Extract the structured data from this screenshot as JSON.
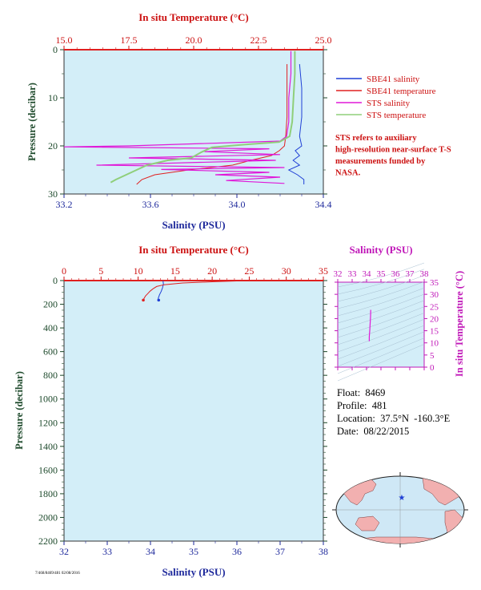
{
  "colors": {
    "salinity": "#1f3fd6",
    "temperature": "#e02020",
    "sts_salinity": "#e018d8",
    "sts_temperature": "#8fcf7a",
    "plot_bg": "#d3eef8",
    "map_grid": "#a7bfd1",
    "axis_red": "#cc1111",
    "axis_blue": "#1f2a9c",
    "axis_magenta": "#c018b8",
    "axis_green": "#1e4a2c"
  },
  "chart_data": [
    {
      "type": "line",
      "title": "",
      "top_axis_label": "In situ Temperature (°C)",
      "top_ticks": [
        "15.0",
        "17.5",
        "20.0",
        "22.5",
        "25.0"
      ],
      "top_range": [
        15.0,
        25.0
      ],
      "xlabel": "Salinity (PSU)",
      "x_ticks": [
        "33.2",
        "33.6",
        "34.0",
        "34.4"
      ],
      "xlim": [
        33.2,
        34.4
      ],
      "ylabel": "Pressure (decibar)",
      "y_ticks": [
        "0",
        "10",
        "20",
        "30"
      ],
      "ylim": [
        0,
        30
      ],
      "legend_position": "right",
      "series": [
        {
          "name": "SBE41 salinity",
          "axis": "salinity",
          "points": [
            [
              34.29,
              3
            ],
            [
              34.3,
              8
            ],
            [
              34.3,
              14
            ],
            [
              34.29,
              18
            ],
            [
              34.3,
              20
            ],
            [
              34.27,
              21
            ],
            [
              34.29,
              22
            ],
            [
              34.26,
              23
            ],
            [
              34.29,
              24
            ],
            [
              34.24,
              25
            ],
            [
              34.28,
              26
            ],
            [
              34.31,
              27
            ],
            [
              34.31,
              28
            ]
          ]
        },
        {
          "name": "SBE41 temperature",
          "axis": "temperature",
          "points": [
            [
              23.6,
              3
            ],
            [
              23.6,
              8
            ],
            [
              23.6,
              14
            ],
            [
              23.55,
              18
            ],
            [
              23.5,
              20
            ],
            [
              23.3,
              21
            ],
            [
              23.0,
              22
            ],
            [
              22.2,
              23
            ],
            [
              21.5,
              24
            ],
            [
              19.8,
              25
            ],
            [
              18.5,
              26
            ],
            [
              18.0,
              27
            ],
            [
              17.8,
              28
            ]
          ]
        },
        {
          "name": "STS salinity",
          "axis": "salinity",
          "points": [
            [
              34.25,
              0.3
            ],
            [
              34.25,
              5
            ],
            [
              34.24,
              10
            ],
            [
              34.24,
              15
            ],
            [
              34.23,
              18
            ],
            [
              34.2,
              19
            ],
            [
              33.5,
              20
            ],
            [
              33.2,
              20.2
            ],
            [
              34.15,
              20.6
            ],
            [
              33.85,
              21.2
            ],
            [
              34.2,
              21.8
            ],
            [
              33.5,
              22.5
            ],
            [
              34.18,
              23.0
            ],
            [
              33.35,
              24.0
            ],
            [
              34.22,
              24.5
            ],
            [
              33.65,
              24.9
            ],
            [
              34.15,
              25.5
            ],
            [
              33.9,
              26.0
            ],
            [
              34.2,
              26.5
            ],
            [
              33.95,
              27.2
            ],
            [
              34.22,
              27.8
            ]
          ]
        },
        {
          "name": "STS temperature",
          "axis": "temperature",
          "points": [
            [
              23.9,
              0.3
            ],
            [
              23.9,
              5
            ],
            [
              23.85,
              10
            ],
            [
              23.8,
              15
            ],
            [
              23.7,
              18
            ],
            [
              23.3,
              19.2
            ],
            [
              22.0,
              19.7
            ],
            [
              20.7,
              20.3
            ],
            [
              20.3,
              21.3
            ],
            [
              19.9,
              22.5
            ],
            [
              19.0,
              23.0
            ],
            [
              18.2,
              24.0
            ],
            [
              17.6,
              25.5
            ],
            [
              17.0,
              27.0
            ],
            [
              16.8,
              27.6
            ]
          ]
        }
      ],
      "note": "STS refers to auxiliary high-resolution near-surface T-S measurements funded by NASA."
    },
    {
      "type": "line",
      "title": "",
      "top_axis_label": "In situ Temperature (°C)",
      "top_ticks": [
        "0",
        "5",
        "10",
        "15",
        "20",
        "25",
        "30",
        "35"
      ],
      "top_range": [
        0,
        35
      ],
      "xlabel": "Salinity (PSU)",
      "x_ticks": [
        "32",
        "33",
        "34",
        "35",
        "36",
        "37",
        "38"
      ],
      "xlim": [
        32,
        38
      ],
      "ylabel": "Pressure (decibar)",
      "y_ticks": [
        "0",
        "200",
        "400",
        "600",
        "800",
        "1000",
        "1200",
        "1400",
        "1600",
        "1800",
        "2000",
        "2200"
      ],
      "ylim": [
        0,
        2200
      ],
      "series": [
        {
          "name": "Salinity",
          "axis": "salinity",
          "points": [
            [
              34.29,
              3
            ],
            [
              34.3,
              30
            ],
            [
              34.28,
              60
            ],
            [
              34.25,
              90
            ],
            [
              34.21,
              120
            ],
            [
              34.18,
              150
            ],
            [
              34.19,
              165
            ]
          ]
        },
        {
          "name": "Temperature",
          "axis": "temperature",
          "points": [
            [
              23.7,
              3
            ],
            [
              20.0,
              10
            ],
            [
              16.0,
              20
            ],
            [
              13.5,
              35
            ],
            [
              12.5,
              50
            ],
            [
              12.0,
              70
            ],
            [
              11.6,
              90
            ],
            [
              11.3,
              110
            ],
            [
              11.0,
              130
            ],
            [
              10.8,
              150
            ],
            [
              10.7,
              165
            ]
          ]
        }
      ]
    },
    {
      "type": "scatter",
      "title": "",
      "top_axis_label": "Salinity (PSU)",
      "x_ticks": [
        "32",
        "33",
        "34",
        "35",
        "36",
        "37",
        "38"
      ],
      "xlim": [
        32,
        38
      ],
      "right_axis_label": "In situ Temperature (°C)",
      "y_ticks": [
        "0",
        "5",
        "10",
        "15",
        "20",
        "25",
        "30",
        "35"
      ],
      "ylim": [
        0,
        35
      ],
      "series": [
        {
          "name": "T-S",
          "points": [
            [
              34.29,
              23.6
            ],
            [
              34.28,
              21
            ],
            [
              34.25,
              18
            ],
            [
              34.22,
              15
            ],
            [
              34.19,
              12.5
            ],
            [
              34.19,
              10.7
            ]
          ]
        }
      ]
    }
  ],
  "info": {
    "float": "Float:  8469",
    "profile": "Profile:  481",
    "location": "Location:  37.5°N  -160.3°E",
    "date": "Date:  08/22/2015"
  },
  "map": {
    "marker": "float-location-star",
    "lat": 37.5,
    "lon": -160.3
  },
  "footer": "7/468/8469/481 02/08/2016"
}
